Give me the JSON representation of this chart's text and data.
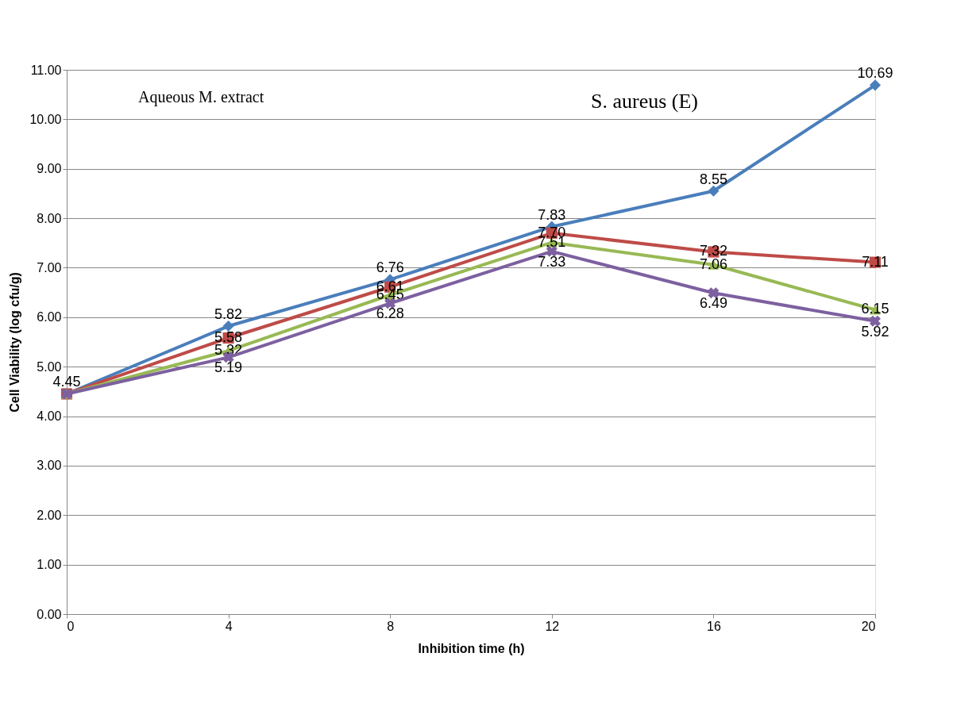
{
  "chart_data": {
    "type": "line",
    "xlabel": "Inhibition time (h)",
    "ylabel": "Cell Viability (log cfu/g)",
    "annotations": [
      "Aqueous M. extract",
      "S. aureus (E)"
    ],
    "x": [
      0,
      4,
      8,
      12,
      16,
      20
    ],
    "series": [
      {
        "color": "#4a7ebb",
        "marker": "diamond",
        "values": [
          4.45,
          5.82,
          6.76,
          7.83,
          8.55,
          10.69
        ],
        "value_labels": [
          "4.45",
          "5.82",
          "6.76",
          "7.83",
          "8.55",
          "10.69"
        ]
      },
      {
        "color": "#be4b48",
        "marker": "square",
        "values": [
          4.45,
          5.58,
          6.61,
          7.7,
          7.32,
          7.11
        ],
        "value_labels": [
          null,
          "5.58",
          "6.61",
          "7.70",
          "7.32",
          "7.11"
        ]
      },
      {
        "color": "#98b954",
        "marker": "triangle",
        "values": [
          4.45,
          5.32,
          6.45,
          7.51,
          7.06,
          6.15
        ],
        "value_labels": [
          null,
          "5.32",
          "6.45",
          "7.51",
          "7.06",
          "6.15"
        ]
      },
      {
        "color": "#7d60a0",
        "marker": "cross",
        "values": [
          4.45,
          5.19,
          6.28,
          7.33,
          6.49,
          5.92
        ],
        "value_labels": [
          null,
          "5.19",
          "6.28",
          "7.33",
          "6.49",
          "5.92"
        ]
      }
    ],
    "xlim": [
      0,
      20
    ],
    "xticks": [
      0,
      4,
      8,
      12,
      16,
      20
    ],
    "ylim": [
      0,
      11
    ],
    "yticks": [
      {
        "value": 0,
        "label": "0.00"
      },
      {
        "value": 1,
        "label": "1.00"
      },
      {
        "value": 2,
        "label": "2.00"
      },
      {
        "value": 3,
        "label": "3.00"
      },
      {
        "value": 4,
        "label": "4.00"
      },
      {
        "value": 5,
        "label": "5.00"
      },
      {
        "value": 6,
        "label": "6.00"
      },
      {
        "value": 7,
        "label": "7.00"
      },
      {
        "value": 8,
        "label": "8.00"
      },
      {
        "value": 9,
        "label": "9.00"
      },
      {
        "value": 10,
        "label": "10.00"
      },
      {
        "value": 11,
        "label": "11.00"
      }
    ],
    "grid": "y",
    "line_style": "solid"
  }
}
